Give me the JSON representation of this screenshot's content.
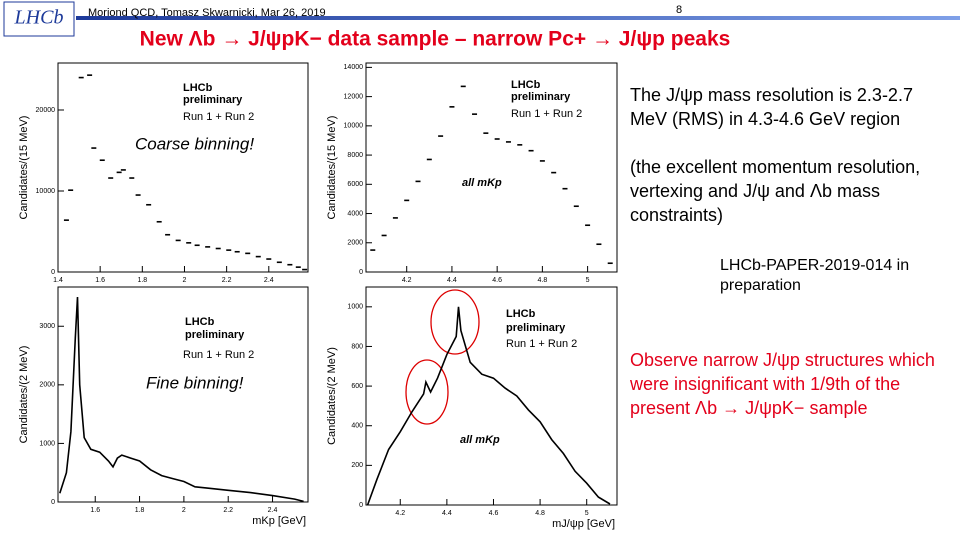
{
  "header": {
    "logo": "LHCb",
    "meta": "Moriond QCD, Tomasz Skwarnicki, Mar 26, 2019",
    "page": "8"
  },
  "title": "New Λb → J/ψpK− data sample – narrow Pc+ → J/ψp peaks",
  "chart_data": [
    {
      "type": "scatter",
      "y_label": "Candidates/(15 MeV)",
      "color": "#000000",
      "notes": [
        "LHCb",
        "preliminary",
        "Run 1 + Run 2",
        "Coarse binning!"
      ],
      "x": [
        1.44,
        1.46,
        1.51,
        1.55,
        1.57,
        1.61,
        1.65,
        1.69,
        1.71,
        1.75,
        1.78,
        1.83,
        1.88,
        1.92,
        1.97,
        2.02,
        2.06,
        2.11,
        2.16,
        2.21,
        2.25,
        2.3,
        2.35,
        2.4,
        2.45,
        2.5,
        2.54,
        2.57
      ],
      "values": [
        6400,
        10100,
        24000,
        24300,
        15300,
        13800,
        11600,
        12300,
        12600,
        11600,
        9500,
        8300,
        6200,
        4600,
        3900,
        3600,
        3300,
        3100,
        2900,
        2700,
        2500,
        2300,
        1900,
        1600,
        1200,
        900,
        600,
        300
      ],
      "xlim": [
        1.4,
        2.586
      ],
      "ylim": [
        0,
        25800
      ],
      "xticks": [
        1.4,
        1.6,
        1.8,
        2,
        2.2,
        2.4
      ],
      "yticks": [
        0,
        10000,
        20000
      ]
    },
    {
      "type": "scatter",
      "y_label": "Candidates/(15 MeV)",
      "color": "#000000",
      "notes": [
        "LHCb",
        "preliminary",
        "Run 1 + Run 2",
        "all mKp"
      ],
      "x": [
        4.05,
        4.1,
        4.15,
        4.2,
        4.25,
        4.3,
        4.35,
        4.4,
        4.45,
        4.5,
        4.55,
        4.6,
        4.65,
        4.7,
        4.75,
        4.8,
        4.85,
        4.9,
        4.95,
        5.0,
        5.05,
        5.1
      ],
      "values": [
        1500,
        2500,
        3700,
        4900,
        6200,
        7700,
        9300,
        11300,
        12700,
        10800,
        9500,
        9100,
        8900,
        8700,
        8300,
        7600,
        6800,
        5700,
        4500,
        3200,
        1900,
        600
      ],
      "xlim": [
        4.02,
        5.13
      ],
      "ylim": [
        0,
        14300
      ],
      "xticks": [
        4.2,
        4.4,
        4.6,
        4.8,
        5
      ],
      "yticks": [
        0,
        2000,
        4000,
        6000,
        8000,
        10000,
        12000,
        14000
      ]
    },
    {
      "type": "line",
      "y_label": "Candidates/(2 MeV)",
      "x_label": "mKp [GeV]",
      "color": "#000000",
      "notes": [
        "LHCb",
        "preliminary",
        "Run 1 + Run 2",
        "Fine binning!"
      ],
      "x": [
        1.44,
        1.47,
        1.49,
        1.51,
        1.52,
        1.53,
        1.55,
        1.58,
        1.62,
        1.66,
        1.68,
        1.7,
        1.72,
        1.76,
        1.8,
        1.85,
        1.9,
        1.95,
        2.0,
        2.05,
        2.1,
        2.2,
        2.3,
        2.4,
        2.5,
        2.54
      ],
      "values": [
        150,
        500,
        1200,
        2800,
        3500,
        2000,
        1100,
        900,
        850,
        700,
        600,
        750,
        800,
        750,
        700,
        550,
        450,
        400,
        350,
        260,
        240,
        200,
        160,
        110,
        50,
        10
      ],
      "xlim": [
        1.432,
        2.56
      ],
      "ylim": [
        0,
        3670
      ],
      "xticks": [
        1.6,
        1.8,
        2,
        2.2,
        2.4
      ],
      "yticks": [
        0,
        1000,
        2000,
        3000
      ]
    },
    {
      "type": "line",
      "y_label": "Candidates/(2 MeV)",
      "x_label": "mJ/ψp [GeV]",
      "color": "#000000",
      "notes": [
        "LHCb",
        "preliminary",
        "Run 1 + Run 2",
        "all mKp"
      ],
      "x": [
        4.06,
        4.1,
        4.15,
        4.2,
        4.25,
        4.3,
        4.31,
        4.33,
        4.36,
        4.4,
        4.44,
        4.45,
        4.46,
        4.5,
        4.55,
        4.6,
        4.65,
        4.7,
        4.75,
        4.8,
        4.85,
        4.9,
        4.95,
        5.0,
        5.05,
        5.1
      ],
      "values": [
        0,
        130,
        280,
        370,
        470,
        560,
        620,
        570,
        640,
        760,
        850,
        1000,
        880,
        720,
        660,
        640,
        590,
        550,
        480,
        420,
        330,
        260,
        170,
        110,
        40,
        5
      ],
      "xlim": [
        4.053,
        5.13
      ],
      "ylim": [
        0,
        1100
      ],
      "xticks": [
        4.2,
        4.4,
        4.6,
        4.8,
        5
      ],
      "yticks": [
        0,
        200,
        400,
        600,
        800,
        1000
      ]
    }
  ],
  "text": {
    "resolution": "The J/ψp mass resolution is 2.3-2.7 MeV (RMS) in 4.3-4.6 GeV region",
    "explanation": "(the excellent momentum resolution, vertexing and J/ψ and Λb mass constraints)",
    "reference": "LHCb-PAPER-2019-014 in preparation",
    "observation": "Observe narrow J/ψp structures which were insignificant with 1/9th of the present Λb → J/ψpK− sample"
  }
}
